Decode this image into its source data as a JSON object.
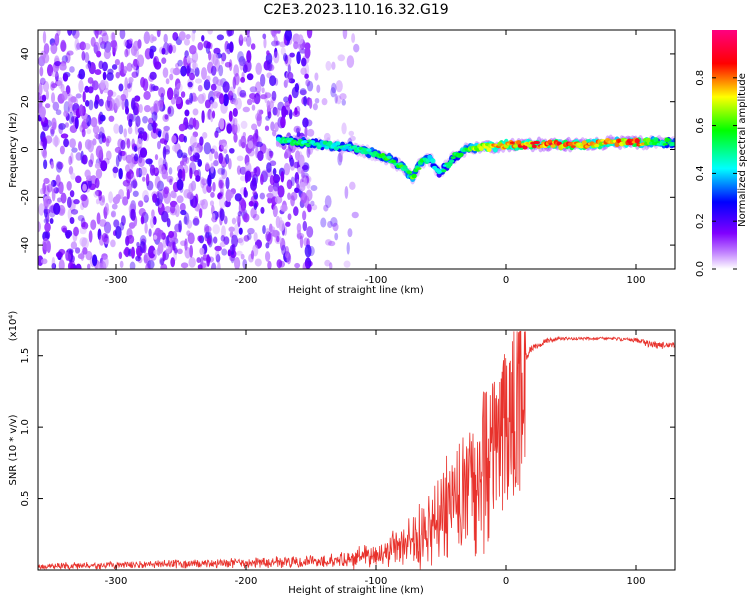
{
  "title": "C2E3.2023.110.16.32.G19",
  "chart_data": [
    {
      "type": "heatmap",
      "xlabel": "Height of straight line (km)",
      "ylabel": "Frequency (Hz)",
      "xlim": [
        -360,
        130
      ],
      "ylim": [
        -50,
        50
      ],
      "x_ticks": [
        -300,
        -200,
        -100,
        0,
        100
      ],
      "x_tick_labels": [
        "-300",
        "-200",
        "-100",
        "0",
        "100"
      ],
      "y_ticks": [
        -40,
        -20,
        0,
        20,
        40
      ],
      "y_tick_labels": [
        "-40",
        "-20",
        "0",
        "20",
        "40"
      ],
      "colorbar": {
        "label": "Normalized spectral amplitude",
        "range": [
          0.0,
          1.0
        ],
        "ticks": [
          0.0,
          0.2,
          0.4,
          0.6,
          0.8
        ],
        "tick_labels": [
          "0.0",
          "0.2",
          "0.4",
          "0.6",
          "0.8"
        ],
        "colormap": [
          "#ffffff",
          "#8000ff",
          "#0000ff",
          "#00ffff",
          "#00ff00",
          "#ffff00",
          "#ff0000",
          "#ff0080"
        ]
      },
      "noise_region_x": [
        -360,
        -150
      ],
      "noise_amplitude": 0.15,
      "ridge": {
        "x": [
          -175,
          -160,
          -140,
          -120,
          -100,
          -90,
          -80,
          -72,
          -65,
          -58,
          -52,
          -46,
          -40,
          -30,
          -20,
          -10,
          0,
          20,
          40,
          60,
          80,
          100,
          115,
          130
        ],
        "frequency": [
          4,
          3,
          2,
          1,
          -2,
          -4,
          -7,
          -12,
          -5,
          -4,
          -10,
          -7,
          -3,
          0,
          1,
          1,
          2,
          2,
          2,
          2,
          3,
          3,
          3,
          3
        ],
        "amplitude": [
          0.5,
          0.55,
          0.5,
          0.5,
          0.55,
          0.6,
          0.6,
          0.65,
          0.6,
          0.5,
          0.45,
          0.55,
          0.55,
          0.6,
          0.75,
          0.8,
          0.85,
          0.9,
          0.9,
          0.85,
          0.8,
          0.9,
          0.6,
          0.55
        ]
      }
    },
    {
      "type": "line",
      "xlabel": "Height of straight line (km)",
      "ylabel": "SNR (10 * v/v)",
      "scale_label": "(x10⁴)",
      "xlim": [
        -360,
        130
      ],
      "ylim": [
        0,
        1.68
      ],
      "x_ticks": [
        -300,
        -200,
        -100,
        0,
        100
      ],
      "x_tick_labels": [
        "-300",
        "-200",
        "-100",
        "0",
        "100"
      ],
      "y_ticks": [
        0.5,
        1.0,
        1.5
      ],
      "y_tick_labels": [
        "0.5",
        "1.0",
        "1.5"
      ],
      "series": [
        {
          "color": "#e8322c",
          "x": [
            -360,
            -300,
            -250,
            -200,
            -150,
            -120,
            -110,
            -100,
            -90,
            -80,
            -70,
            -60,
            -50,
            -40,
            -30,
            -20,
            -10,
            0,
            5,
            10,
            15,
            20,
            30,
            40,
            60,
            80,
            100,
            110,
            120,
            130
          ],
          "y": [
            0.03,
            0.04,
            0.05,
            0.06,
            0.07,
            0.08,
            0.12,
            0.1,
            0.18,
            0.22,
            0.25,
            0.35,
            0.4,
            0.5,
            0.65,
            0.85,
            1.0,
            1.2,
            1.35,
            1.45,
            1.5,
            1.55,
            1.6,
            1.62,
            1.62,
            1.62,
            1.61,
            1.58,
            1.57,
            1.58
          ],
          "noise": [
            0.02,
            0.02,
            0.02,
            0.02,
            0.03,
            0.05,
            0.1,
            0.08,
            0.12,
            0.15,
            0.25,
            0.35,
            0.4,
            0.45,
            0.55,
            0.5,
            0.4,
            0.3,
            0.2,
            0.12,
            0.08,
            0.05,
            0.04,
            0.02,
            0.02,
            0.02,
            0.03,
            0.05,
            0.05,
            0.04
          ]
        }
      ]
    }
  ]
}
